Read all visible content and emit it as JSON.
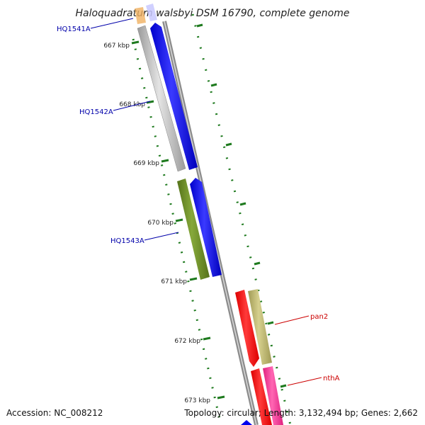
{
  "title": "Haloquadratum walsbyi DSM 16790, complete genome",
  "ticks": [
    "667 kbp",
    "668 kbp",
    "669 kbp",
    "670 kbp",
    "671 kbp",
    "672 kbp",
    "673 kbp"
  ],
  "genes": {
    "hq1541a": "HQ1541A",
    "hq1542a": "HQ1542A",
    "hq1543a": "HQ1543A",
    "pan2": "pan2",
    "ntha": "nthA"
  },
  "footer": {
    "accession": "Accession: NC_008212",
    "topology": "Topology: circular; Length: 3,132,494 bp; Genes: 2,662"
  },
  "colors": {
    "backbone": "#888888",
    "blue_gene": "#0000ee",
    "grey_gene": "#b8b8b8",
    "green_gene": "#6b8e23",
    "red_gene": "#ff0000",
    "khaki_gene": "#bdb76b",
    "pink_gene": "#ff3399",
    "tick_green": "#228b22"
  }
}
